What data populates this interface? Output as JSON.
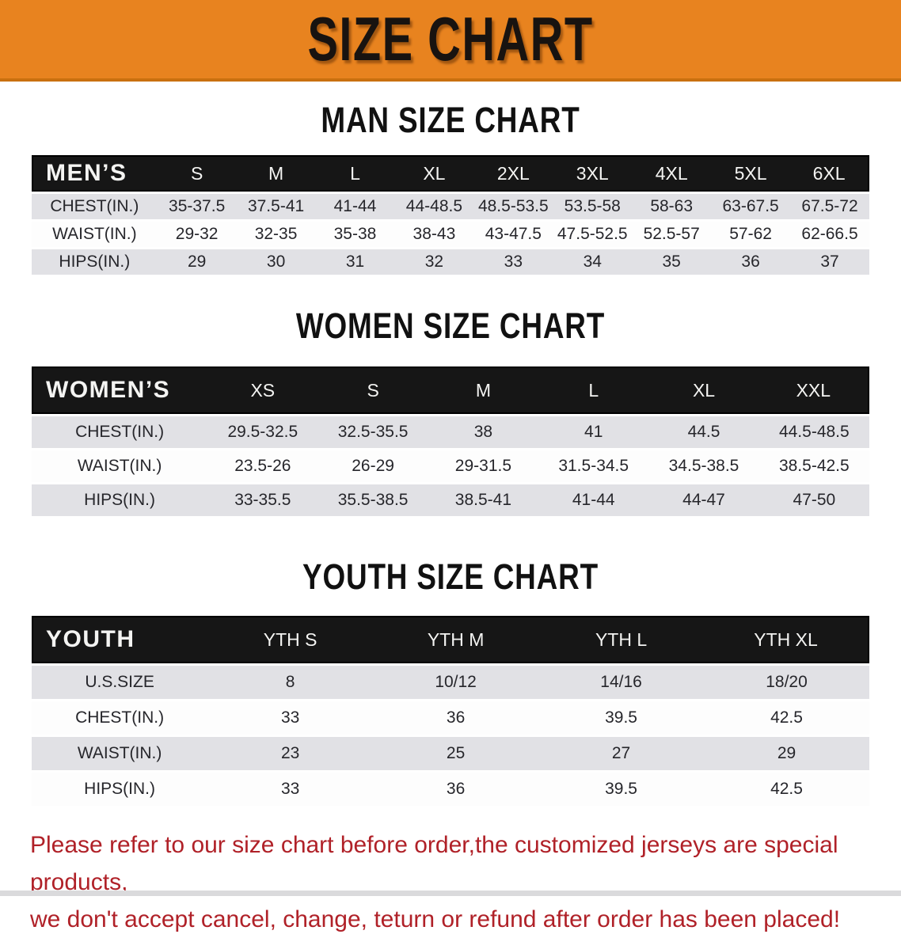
{
  "banner": {
    "title": "SIZE CHART",
    "background_color": "#E8831F",
    "title_color": "#181310"
  },
  "sections": [
    {
      "id": "men",
      "heading": "MAN SIZE CHART",
      "table": {
        "header": [
          "MEN’S",
          "S",
          "M",
          "L",
          "XL",
          "2XL",
          "3XL",
          "4XL",
          "5XL",
          "6XL"
        ],
        "rows": [
          {
            "label": "CHEST(IN.)",
            "values": [
              "35-37.5",
              "37.5-41",
              "41-44",
              "44-48.5",
              "48.5-53.5",
              "53.5-58",
              "58-63",
              "63-67.5",
              "67.5-72"
            ]
          },
          {
            "label": "WAIST(IN.)",
            "values": [
              "29-32",
              "32-35",
              "35-38",
              "38-43",
              "43-47.5",
              "47.5-52.5",
              "52.5-57",
              "57-62",
              "62-66.5"
            ]
          },
          {
            "label": "HIPS(IN.)",
            "values": [
              "29",
              "30",
              "31",
              "32",
              "33",
              "34",
              "35",
              "36",
              "37"
            ]
          }
        ]
      }
    },
    {
      "id": "women",
      "heading": "WOMEN SIZE CHART",
      "table": {
        "header": [
          "WOMEN’S",
          "XS",
          "S",
          "M",
          "L",
          "XL",
          "XXL"
        ],
        "rows": [
          {
            "label": "CHEST(IN.)",
            "values": [
              "29.5-32.5",
              "32.5-35.5",
              "38",
              "41",
              "44.5",
              "44.5-48.5"
            ]
          },
          {
            "label": "WAIST(IN.)",
            "values": [
              "23.5-26",
              "26-29",
              "29-31.5",
              "31.5-34.5",
              "34.5-38.5",
              "38.5-42.5"
            ]
          },
          {
            "label": "HIPS(IN.)",
            "values": [
              "33-35.5",
              "35.5-38.5",
              "38.5-41",
              "41-44",
              "44-47",
              "47-50"
            ]
          }
        ]
      }
    },
    {
      "id": "youth",
      "heading": "YOUTH SIZE CHART",
      "table": {
        "header": [
          "YOUTH",
          "YTH S",
          "YTH M",
          "YTH L",
          "YTH XL"
        ],
        "rows": [
          {
            "label": "U.S.SIZE",
            "values": [
              "8",
              "10/12",
              "14/16",
              "18/20"
            ]
          },
          {
            "label": "CHEST(IN.)",
            "values": [
              "33",
              "36",
              "39.5",
              "42.5"
            ]
          },
          {
            "label": "WAIST(IN.)",
            "values": [
              "23",
              "25",
              "27",
              "29"
            ]
          },
          {
            "label": "HIPS(IN.)",
            "values": [
              "33",
              "36",
              "39.5",
              "42.5"
            ]
          }
        ]
      }
    }
  ],
  "disclaimer": {
    "color": "#B02128",
    "lines": [
      "Please refer to our size chart before order,the customized jerseys are special products,",
      "we don't accept cancel, change, teturn or refund after order has been placed!"
    ]
  }
}
